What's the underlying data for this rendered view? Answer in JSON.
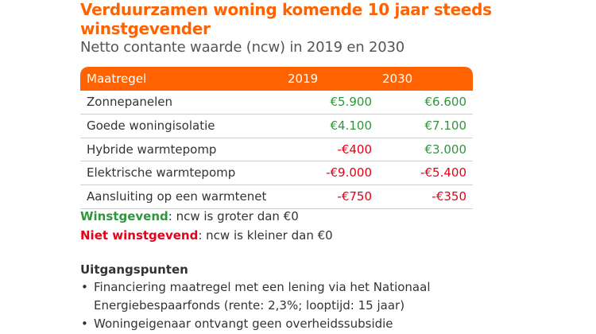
{
  "title": "Verduurzamen woning komende 10 jaar steeds winstgevender",
  "subtitle": "Netto contante waarde (ncw) in 2019 en 2030",
  "colors": {
    "accent": "#ff6200",
    "positive": "#30953d",
    "negative": "#e60017"
  },
  "table": {
    "headers": [
      "Maatregel",
      "2019",
      "2030"
    ],
    "rows": [
      {
        "label": "Zonnepanelen",
        "v2019": "€5.900",
        "v2030": "€6.600",
        "s2019": "pos",
        "s2030": "pos"
      },
      {
        "label": "Goede woningisolatie",
        "v2019": "€4.100",
        "v2030": "€7.100",
        "s2019": "pos",
        "s2030": "pos"
      },
      {
        "label": "Hybride warmtepomp",
        "v2019": "-€400",
        "v2030": "€3.000",
        "s2019": "neg",
        "s2030": "pos"
      },
      {
        "label": "Elektrische warmtepomp",
        "v2019": "-€9.000",
        "v2030": "-€5.400",
        "s2019": "neg",
        "s2030": "neg"
      },
      {
        "label": "Aansluiting op een warmtenet",
        "v2019": "-€750",
        "v2030": "-€350",
        "s2019": "neg",
        "s2030": "neg"
      }
    ]
  },
  "legend": {
    "positive_term": "Winstgevend",
    "positive_text": ": ncw is groter dan €0",
    "negative_term": "Niet winstgevend",
    "negative_text": ": ncw is kleiner dan €0"
  },
  "assumptions": {
    "heading": "Uitgangspunten",
    "items": [
      "Financiering maatregel met een lening via het Nationaal Energiebespaarfonds (rente: 2,3%; looptijd: 15 jaar)",
      "Woningeigenaar ontvangt geen overheidssubsidie"
    ]
  }
}
